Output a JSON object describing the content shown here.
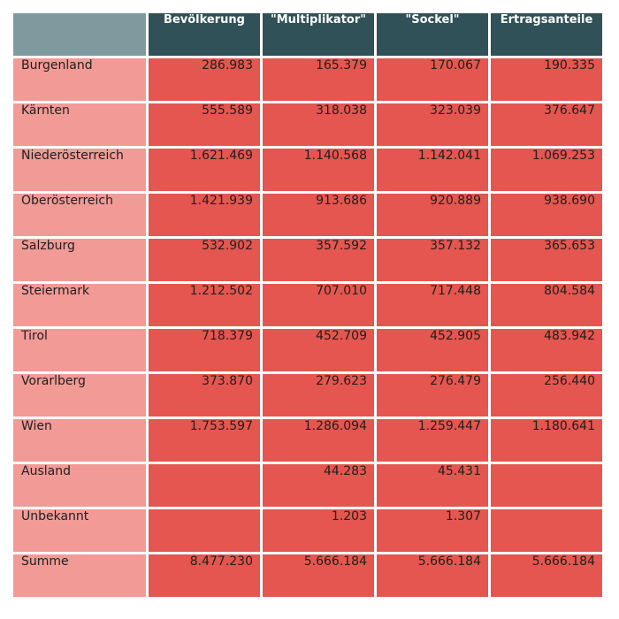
{
  "chart_data": {
    "type": "table",
    "columns": [
      "",
      "Bevölkerung",
      "\"Multiplikator\"",
      "\"Sockel\"",
      "Ertragsanteile"
    ],
    "rows": [
      {
        "label": "Burgenland",
        "values": [
          "286.983",
          "165.379",
          "170.067",
          "190.335"
        ]
      },
      {
        "label": "Kärnten",
        "values": [
          "555.589",
          "318.038",
          "323.039",
          "376.647"
        ]
      },
      {
        "label": "Niederösterreich",
        "values": [
          "1.621.469",
          "1.140.568",
          "1.142.041",
          "1.069.253"
        ]
      },
      {
        "label": "Oberösterreich",
        "values": [
          "1.421.939",
          "913.686",
          "920.889",
          "938.690"
        ]
      },
      {
        "label": "Salzburg",
        "values": [
          "532.902",
          "357.592",
          "357.132",
          "365.653"
        ]
      },
      {
        "label": "Steiermark",
        "values": [
          "1.212.502",
          "707.010",
          "717.448",
          "804.584"
        ]
      },
      {
        "label": "Tirol",
        "values": [
          "718.379",
          "452.709",
          "452.905",
          "483.942"
        ]
      },
      {
        "label": "Vorarlberg",
        "values": [
          "373.870",
          "279.623",
          "276.479",
          "256.440"
        ]
      },
      {
        "label": "Wien",
        "values": [
          "1.753.597",
          "1.286.094",
          "1.259.447",
          "1.180.641"
        ]
      },
      {
        "label": "Ausland",
        "values": [
          "",
          "44.283",
          "45.431",
          ""
        ]
      },
      {
        "label": "Unbekannt",
        "values": [
          "",
          "1.203",
          "1.307",
          ""
        ]
      },
      {
        "label": "Summe",
        "values": [
          "8.477.230",
          "5.666.184",
          "5.666.184",
          "5.666.184"
        ]
      }
    ]
  },
  "colors": {
    "header_corner": "#7e9a9f",
    "header_bg": "#2f5157",
    "header_text": "#ffffff",
    "row_label_bg": "#f19a96",
    "cell_bg": "#e4564f",
    "cell_text": "#1f1f1f"
  }
}
